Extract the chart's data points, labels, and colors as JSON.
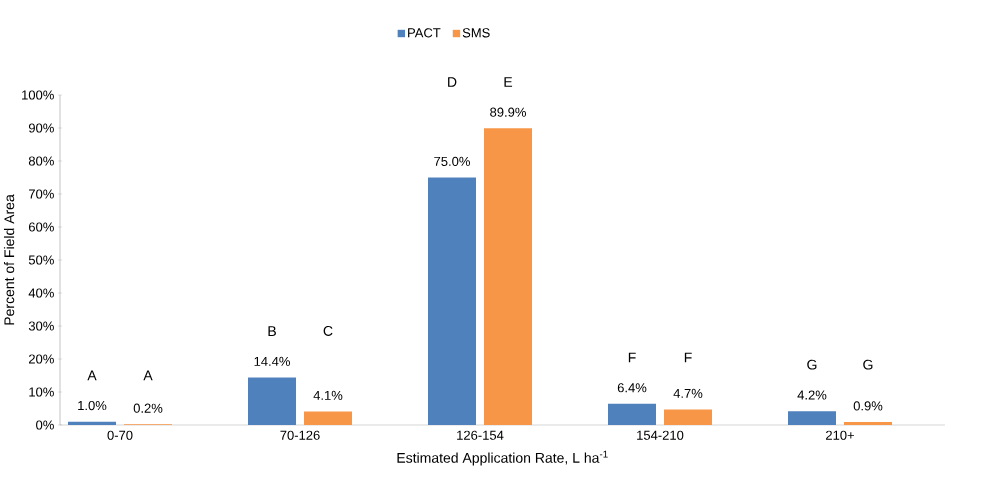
{
  "chart_data": {
    "type": "bar",
    "categories": [
      "0-70",
      "70-126",
      "126-154",
      "154-210",
      "210+"
    ],
    "series": [
      {
        "name": "PACT",
        "color": "#4f81bd",
        "values": [
          1.0,
          14.4,
          75.0,
          6.4,
          4.2
        ],
        "value_labels": [
          "1.0%",
          "14.4%",
          "75.0%",
          "6.4%",
          "4.2%"
        ]
      },
      {
        "name": "SMS",
        "color": "#f79646",
        "values": [
          0.2,
          4.1,
          89.9,
          4.7,
          0.9
        ],
        "value_labels": [
          "0.2%",
          "4.1%",
          "89.9%",
          "4.7%",
          "0.9%"
        ]
      }
    ],
    "xlabel": "Estimated Application Rate, L ha$^{-1}$",
    "ylabel": "Percent of Field Area",
    "ylim": [
      0,
      100
    ],
    "yticks": [
      {
        "value": 0,
        "label": "0%"
      },
      {
        "value": 10,
        "label": "10%"
      },
      {
        "value": 20,
        "label": "20%"
      },
      {
        "value": 30,
        "label": "30%"
      },
      {
        "value": 40,
        "label": "40%"
      },
      {
        "value": 50,
        "label": "50%"
      },
      {
        "value": 60,
        "label": "60%"
      },
      {
        "value": 70,
        "label": "70%"
      },
      {
        "value": 80,
        "label": "80%"
      },
      {
        "value": 90,
        "label": "90%"
      },
      {
        "value": 100,
        "label": "100%"
      }
    ],
    "annotations": [
      "A",
      "A",
      "B",
      "C",
      "D",
      "E",
      "F",
      "F",
      "G",
      "G"
    ],
    "legend": "top",
    "grid": false
  }
}
